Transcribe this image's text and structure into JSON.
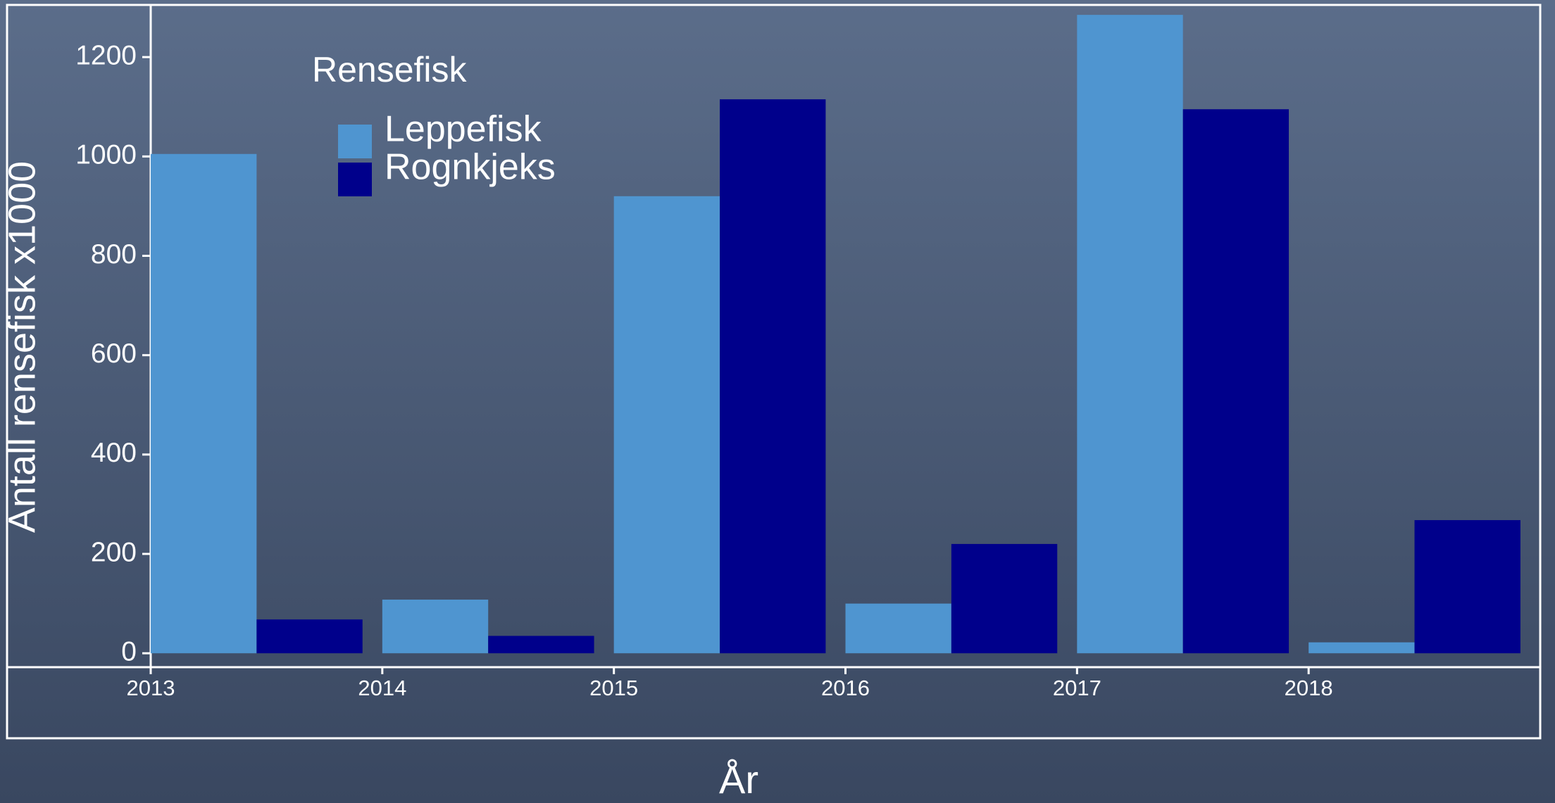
{
  "chart_data": {
    "type": "bar",
    "legend_title": "Rensefisk",
    "x_label": "År",
    "y_label": "Antall rensefisk x1000",
    "categories": [
      "2013",
      "2014",
      "2015",
      "2016",
      "2017",
      "2018"
    ],
    "series": [
      {
        "name": "Leppefisk",
        "color": "#4f95d0",
        "values": [
          1005,
          108,
          920,
          100,
          1285,
          22
        ]
      },
      {
        "name": "Rognkjeks",
        "color": "#00008b",
        "values": [
          68,
          35,
          1115,
          220,
          1095,
          268
        ]
      }
    ],
    "ylim": [
      -28,
      1305
    ],
    "yticks": [
      0,
      200,
      400,
      600,
      800,
      1000,
      1200
    ],
    "legend": "upper left"
  }
}
